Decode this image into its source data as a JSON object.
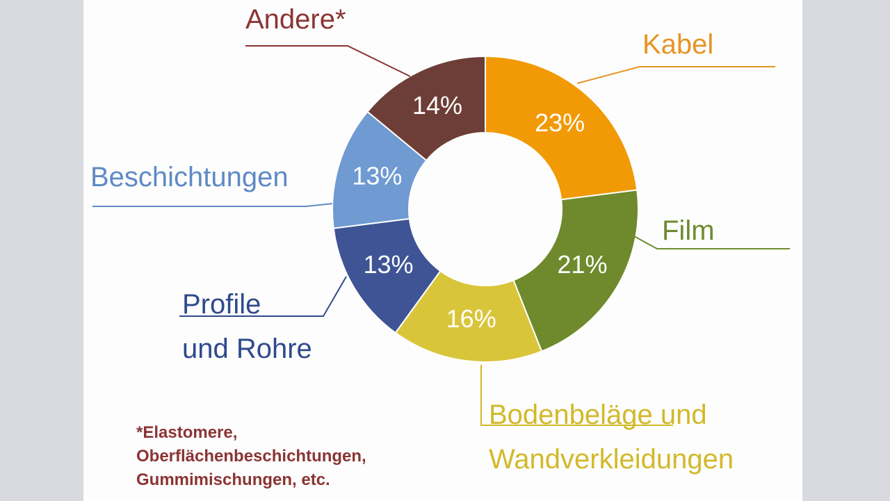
{
  "chart_data": {
    "type": "pie",
    "style": "donut",
    "slices": [
      {
        "label": "Kabel",
        "value": 23,
        "display": "23%",
        "color": "#f19a06",
        "label_color": "#e69425"
      },
      {
        "label": "Film",
        "value": 21,
        "display": "21%",
        "color": "#6e8a2c",
        "label_color": "#6f8b2f"
      },
      {
        "label": "Bodenbeläge und Wandverkleidungen",
        "label_lines": [
          "Bodenbeläge und",
          "Wandverkleidungen"
        ],
        "value": 16,
        "display": "16%",
        "color": "#d9c53a",
        "label_color": "#d2b92a"
      },
      {
        "label": "Profile und Rohre",
        "label_lines": [
          "Profile",
          "und Rohre"
        ],
        "value": 13,
        "display": "13%",
        "color": "#3e5494",
        "label_color": "#2f4a8c"
      },
      {
        "label": "Beschichtungen",
        "value": 13,
        "display": "13%",
        "color": "#6f9ad2",
        "label_color": "#5e8ac6"
      },
      {
        "label": "Andere*",
        "value": 14,
        "display": "14%",
        "color": "#6d3e37",
        "label_color": "#8b3434"
      }
    ]
  },
  "footnote": {
    "lines": [
      "*Elastomere,",
      "Oberflächenbeschichtungen,",
      "Gummimischungen, etc."
    ]
  }
}
